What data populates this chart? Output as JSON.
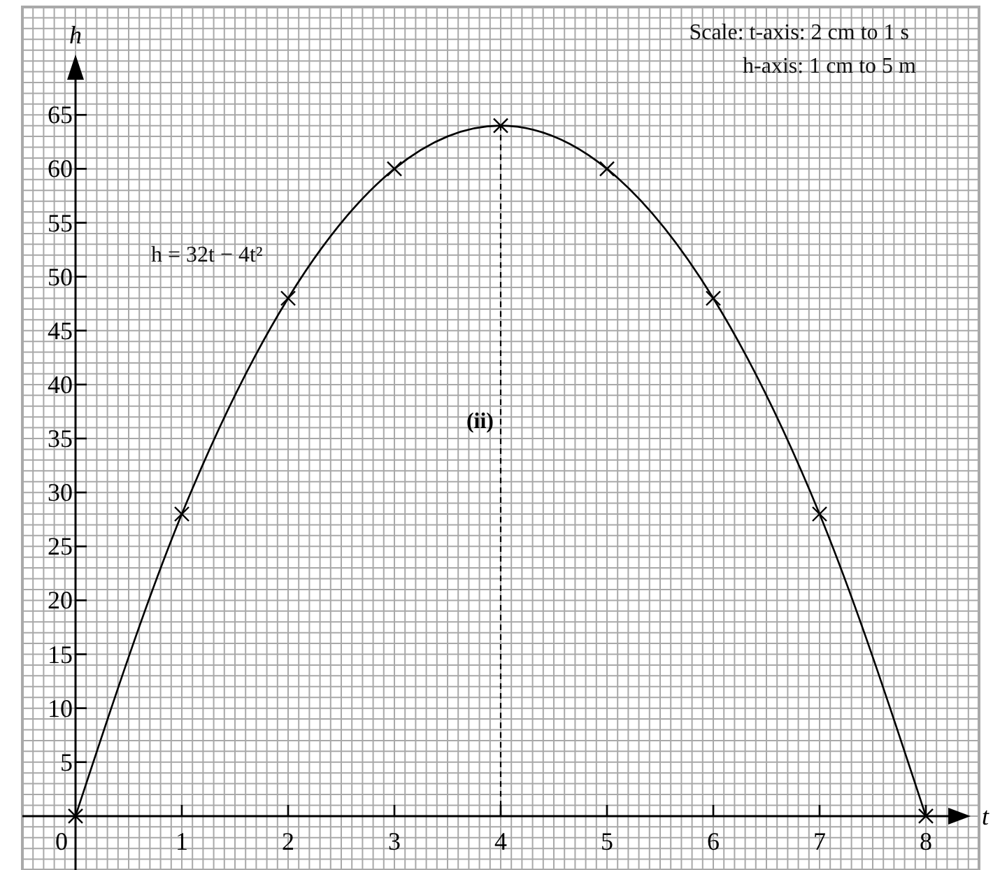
{
  "chart_data": {
    "type": "line",
    "xlabel": "t",
    "ylabel": "h",
    "x": [
      0,
      1,
      2,
      3,
      4,
      5,
      6,
      7,
      8
    ],
    "series": [
      {
        "color": "#000000",
        "values": [
          0,
          28,
          48,
          60,
          64,
          60,
          48,
          28,
          0
        ]
      }
    ],
    "xlim": [
      -0.5,
      8.5
    ],
    "ylim": [
      -5,
      75
    ],
    "xticks": [
      0,
      1,
      2,
      3,
      4,
      5,
      6,
      7,
      8
    ],
    "yticks": [
      5,
      10,
      15,
      20,
      25,
      30,
      35,
      40,
      45,
      50,
      55,
      60,
      65
    ],
    "grid": true,
    "marker": "cross",
    "line_style": "solid",
    "ref_lines": [
      {
        "axis": "x",
        "value": 4,
        "label": "(ii)",
        "line_style": "dashed",
        "color": "#000000"
      }
    ],
    "annotations": [
      "h = 32t − 4t²",
      "Scale: t-axis: 2 cm to 1 s",
      "h-axis: 1 cm to 5 m"
    ]
  }
}
